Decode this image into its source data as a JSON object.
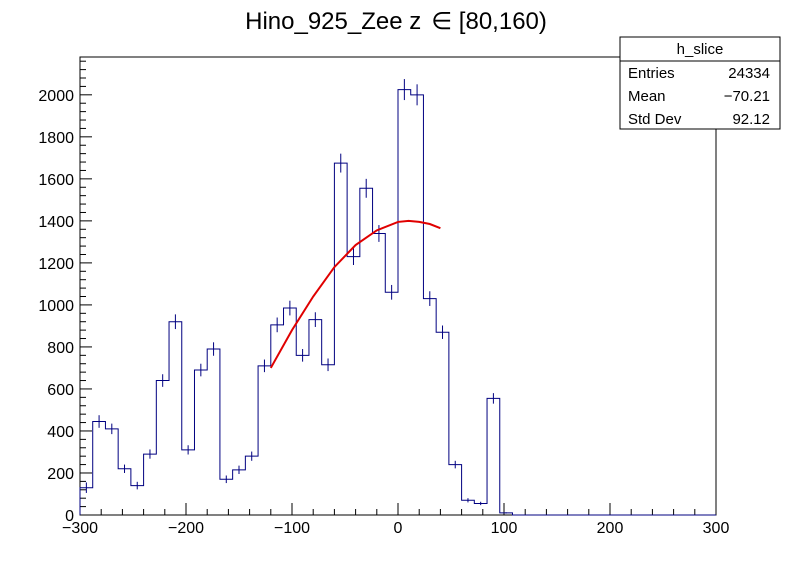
{
  "chart_data": {
    "type": "histogram",
    "title_main": "Hino_925_Zee z",
    "title_tail": "∈ [80,160)",
    "xlabel": "",
    "ylabel": "",
    "xlim": [
      -300,
      300
    ],
    "ylim": [
      0,
      2180
    ],
    "bin_width": 12,
    "x_ticks": [
      -300,
      -200,
      -100,
      0,
      100,
      200,
      300
    ],
    "x_tick_labels": [
      "−300",
      "−200",
      "−100",
      "0",
      "100",
      "200",
      "300"
    ],
    "y_ticks": [
      0,
      200,
      400,
      600,
      800,
      1000,
      1200,
      1400,
      1600,
      1800,
      2000
    ],
    "y_tick_labels": [
      "0",
      "200",
      "400",
      "600",
      "800",
      "1000",
      "1200",
      "1400",
      "1600",
      "1800",
      "2000"
    ],
    "series": [
      {
        "kind": "histogram",
        "color": "#000080",
        "bin_edges_start": -300,
        "values": [
          130,
          445,
          410,
          220,
          140,
          290,
          640,
          920,
          310,
          690,
          790,
          170,
          215,
          280,
          710,
          905,
          985,
          760,
          930,
          715,
          1675,
          1230,
          1555,
          1340,
          1060,
          2025,
          2000,
          1030,
          870,
          240,
          70,
          55,
          555,
          10,
          0,
          0,
          0,
          0,
          0,
          0,
          0,
          0,
          0,
          0,
          0,
          0,
          0,
          0,
          0,
          0
        ],
        "errors": [
          25,
          30,
          25,
          20,
          18,
          22,
          30,
          35,
          22,
          30,
          32,
          18,
          20,
          22,
          30,
          35,
          35,
          30,
          35,
          30,
          45,
          40,
          45,
          40,
          35,
          50,
          50,
          35,
          32,
          18,
          10,
          8,
          25,
          3,
          0,
          0,
          0,
          0,
          0,
          0,
          0,
          0,
          0,
          0,
          0,
          0,
          0,
          0,
          0,
          0
        ]
      },
      {
        "kind": "fit",
        "color": "#e00000",
        "x": [
          -120,
          -100,
          -80,
          -60,
          -40,
          -20,
          0,
          10,
          20,
          30,
          40
        ],
        "y": [
          700,
          880,
          1040,
          1180,
          1285,
          1355,
          1395,
          1400,
          1395,
          1385,
          1365
        ]
      }
    ]
  },
  "stats_box": {
    "title": "h_slice",
    "rows": [
      {
        "label": "Entries",
        "value": "24334"
      },
      {
        "label": "Mean",
        "value": "−70.21"
      },
      {
        "label": "Std Dev",
        "value": "92.12"
      }
    ]
  }
}
